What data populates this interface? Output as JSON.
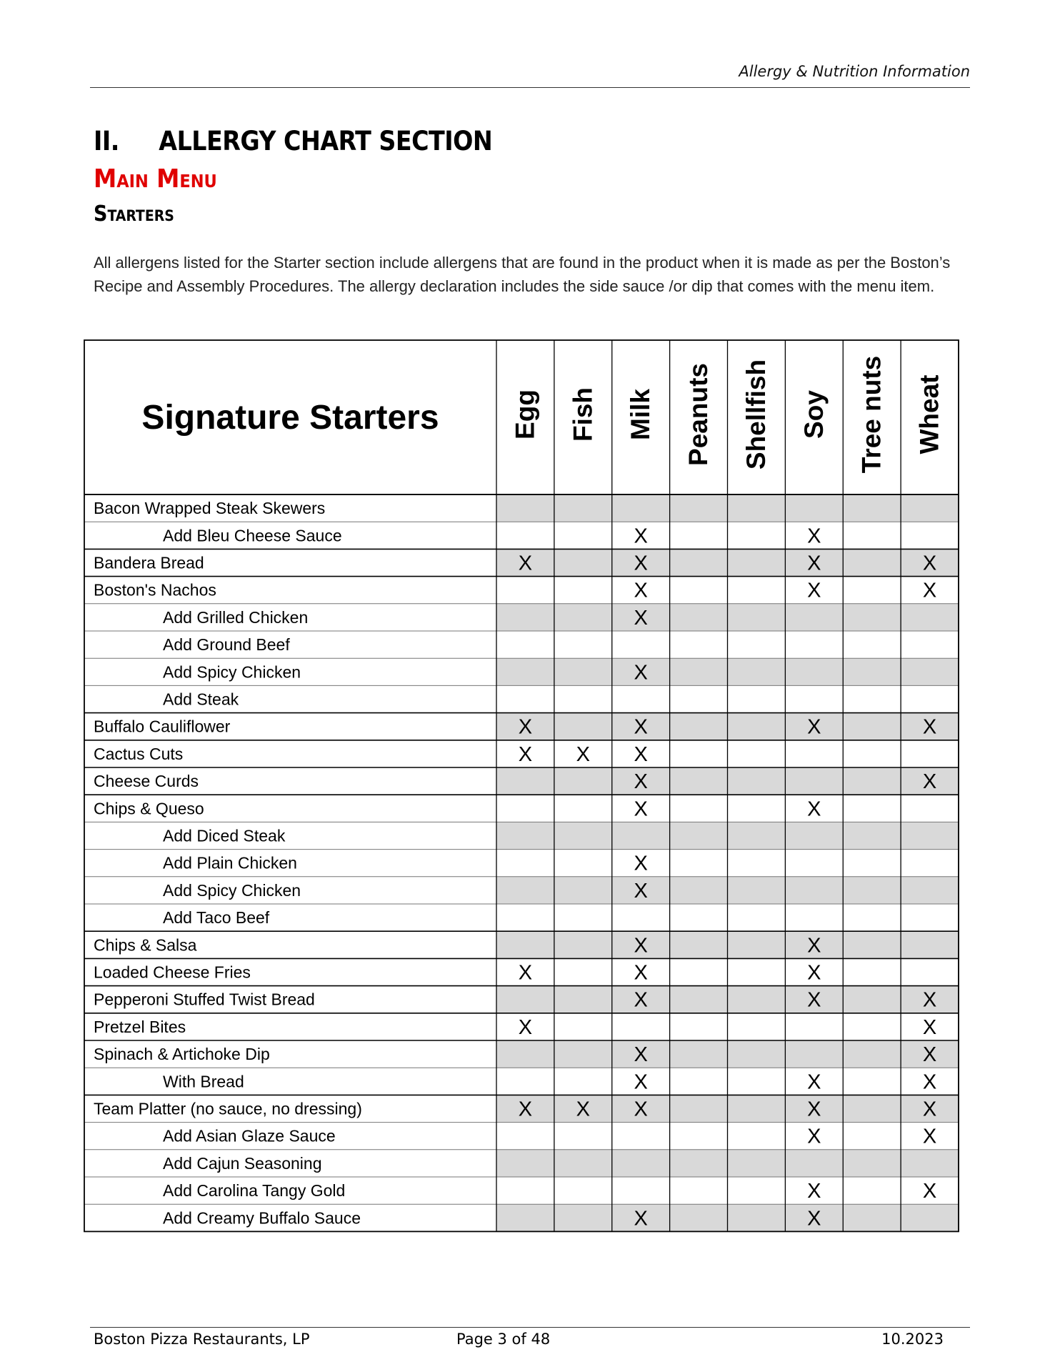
{
  "header": {
    "title": "Allergy & Nutrition Information"
  },
  "section": {
    "title": "II.     ALLERGY CHART SECTION",
    "menu": "Main Menu",
    "heading": "Starters",
    "intro": "All allergens listed for the Starter section include allergens that are found in the product when it is made as per the Boston’s Recipe and Assembly Procedures. The allergy declaration includes the side sauce /or dip that comes with the menu item."
  },
  "table": {
    "title": "Signature Starters",
    "columns": [
      "Egg",
      "Fish",
      "Milk",
      "Peanuts",
      "Shellfish",
      "Soy",
      "Tree nuts",
      "Wheat"
    ],
    "rows": [
      {
        "name": "Bacon Wrapped Steak Skewers",
        "cells": [
          null,
          null,
          null,
          null,
          null,
          null,
          null,
          null
        ],
        "addons": [
          {
            "name": "Add Bleu Cheese Sauce",
            "cells": [
              null,
              null,
              "X",
              null,
              null,
              "X",
              null,
              null
            ]
          }
        ]
      },
      {
        "name": "Bandera Bread",
        "cells": [
          "X",
          null,
          "X",
          null,
          null,
          "X",
          null,
          "X"
        ]
      },
      {
        "name": "Boston's Nachos",
        "cells": [
          null,
          null,
          "X",
          null,
          null,
          "X",
          null,
          "X"
        ],
        "addons": [
          {
            "name": "Add Grilled Chicken",
            "cells": [
              null,
              null,
              "X",
              null,
              null,
              null,
              null,
              null
            ]
          },
          {
            "name": "Add Ground Beef",
            "cells": [
              null,
              null,
              null,
              null,
              null,
              null,
              null,
              null
            ]
          },
          {
            "name": "Add Spicy Chicken",
            "cells": [
              null,
              null,
              "X",
              null,
              null,
              null,
              null,
              null
            ]
          },
          {
            "name": "Add Steak",
            "cells": [
              null,
              null,
              null,
              null,
              null,
              null,
              null,
              null
            ]
          }
        ]
      },
      {
        "name": "Buffalo Cauliflower",
        "cells": [
          "X",
          null,
          "X",
          null,
          null,
          "X",
          null,
          "X"
        ]
      },
      {
        "name": "Cactus Cuts",
        "cells": [
          "X",
          "X",
          "X",
          null,
          null,
          null,
          null,
          null
        ]
      },
      {
        "name": "Cheese Curds",
        "cells": [
          null,
          null,
          "X",
          null,
          null,
          null,
          null,
          "X"
        ]
      },
      {
        "name": "Chips & Queso",
        "cells": [
          null,
          null,
          "X",
          null,
          null,
          "X",
          null,
          null
        ],
        "addons": [
          {
            "name": "Add Diced Steak",
            "cells": [
              null,
              null,
              null,
              null,
              null,
              null,
              null,
              null
            ]
          },
          {
            "name": "Add Plain Chicken",
            "cells": [
              null,
              null,
              "X",
              null,
              null,
              null,
              null,
              null
            ]
          },
          {
            "name": "Add Spicy Chicken",
            "cells": [
              null,
              null,
              "X",
              null,
              null,
              null,
              null,
              null
            ]
          },
          {
            "name": "Add Taco Beef",
            "cells": [
              null,
              null,
              null,
              null,
              null,
              null,
              null,
              null
            ]
          }
        ]
      },
      {
        "name": "Chips & Salsa",
        "cells": [
          null,
          null,
          "X",
          null,
          null,
          "X",
          null,
          null
        ]
      },
      {
        "name": "Loaded Cheese Fries",
        "cells": [
          "X",
          null,
          "X",
          null,
          null,
          "X",
          null,
          null
        ]
      },
      {
        "name": "Pepperoni Stuffed Twist Bread",
        "cells": [
          null,
          null,
          "X",
          null,
          null,
          "X",
          null,
          "X"
        ]
      },
      {
        "name": "Pretzel Bites",
        "cells": [
          "X",
          null,
          null,
          null,
          null,
          null,
          null,
          "X"
        ]
      },
      {
        "name": "Spinach & Artichoke Dip",
        "cells": [
          null,
          null,
          "X",
          null,
          null,
          null,
          null,
          "X"
        ],
        "addons": [
          {
            "name": "With Bread",
            "cells": [
              null,
              null,
              "X",
              null,
              null,
              "X",
              null,
              "X"
            ]
          }
        ]
      },
      {
        "name": "Team Platter (no sauce, no dressing)",
        "cells": [
          "X",
          "X",
          "X",
          null,
          null,
          "X",
          null,
          "X"
        ],
        "addons": [
          {
            "name": "Add Asian Glaze Sauce",
            "cells": [
              null,
              null,
              null,
              null,
              null,
              "X",
              null,
              "X"
            ]
          },
          {
            "name": "Add Cajun Seasoning",
            "cells": [
              null,
              null,
              null,
              null,
              null,
              null,
              null,
              null
            ]
          },
          {
            "name": "Add Carolina Tangy Gold",
            "cells": [
              null,
              null,
              null,
              null,
              null,
              "X",
              null,
              "X"
            ]
          },
          {
            "name": "Add Creamy Buffalo Sauce",
            "cells": [
              null,
              null,
              "X",
              null,
              null,
              "X",
              null,
              null
            ]
          }
        ]
      }
    ]
  },
  "footer": {
    "company": "Boston Pizza Restaurants, LP",
    "page": "Page 3 of 48",
    "date": "10.2023"
  }
}
